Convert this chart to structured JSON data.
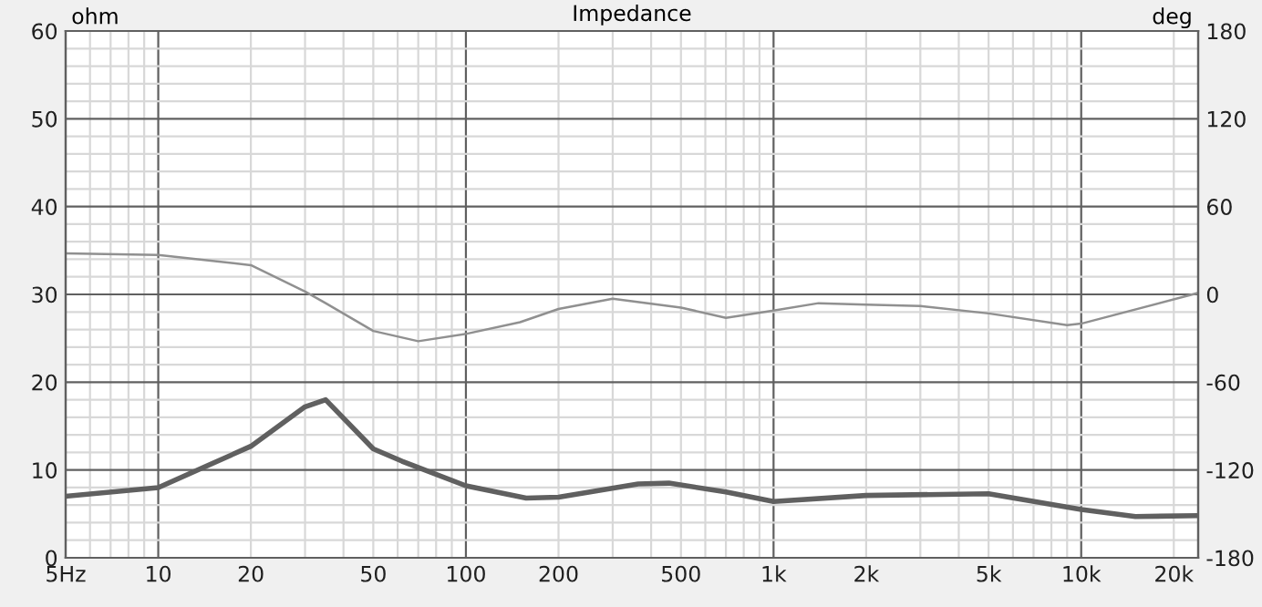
{
  "chart_data": {
    "type": "line",
    "title": "Impedance",
    "ylabel": "ohm",
    "y2label": "deg",
    "xlim": [
      5,
      24000
    ],
    "log": "x",
    "xticks": [
      {
        "value": 5,
        "label": "5Hz"
      },
      10,
      20,
      50,
      100,
      200,
      500,
      {
        "value": 1000,
        "label": "1k"
      },
      {
        "value": 2000,
        "label": "2k"
      },
      {
        "value": 5000,
        "label": "5k"
      },
      {
        "value": 10000,
        "label": "10k"
      },
      {
        "value": 20000,
        "label": "20k"
      }
    ],
    "ylim": [
      0,
      60
    ],
    "yticks": [
      0,
      10,
      20,
      30,
      40,
      50,
      60
    ],
    "y2lim": [
      -180,
      180
    ],
    "y2ticks": [
      -180,
      -120,
      -60,
      0,
      60,
      120,
      180
    ],
    "grid": true,
    "series": [
      {
        "color": "#606060",
        "x": [
          5,
          10,
          20,
          30,
          35,
          50,
          62,
          100,
          157,
          200,
          363,
          457,
          700,
          1000,
          2000,
          5000,
          10000,
          15000,
          24000
        ],
        "values": [
          7.0,
          8.0,
          12.7,
          17.2,
          18.0,
          12.4,
          11.0,
          8.2,
          6.8,
          6.9,
          8.4,
          8.5,
          7.5,
          6.4,
          7.1,
          7.3,
          5.5,
          4.7,
          4.8
        ]
      },
      {
        "color": "#909090",
        "axis": "y2",
        "x": [
          5,
          10,
          20,
          30,
          35,
          50,
          70,
          100,
          150,
          200,
          300,
          500,
          700,
          1000,
          1400,
          2000,
          3000,
          5000,
          9000,
          10000,
          24000
        ],
        "values": [
          28,
          27,
          20,
          2,
          -6,
          -25,
          -32,
          -27,
          -19,
          -10,
          -3,
          -9,
          -16,
          -11,
          -6,
          -7,
          -8,
          -13,
          -21,
          -20,
          1
        ]
      }
    ]
  }
}
